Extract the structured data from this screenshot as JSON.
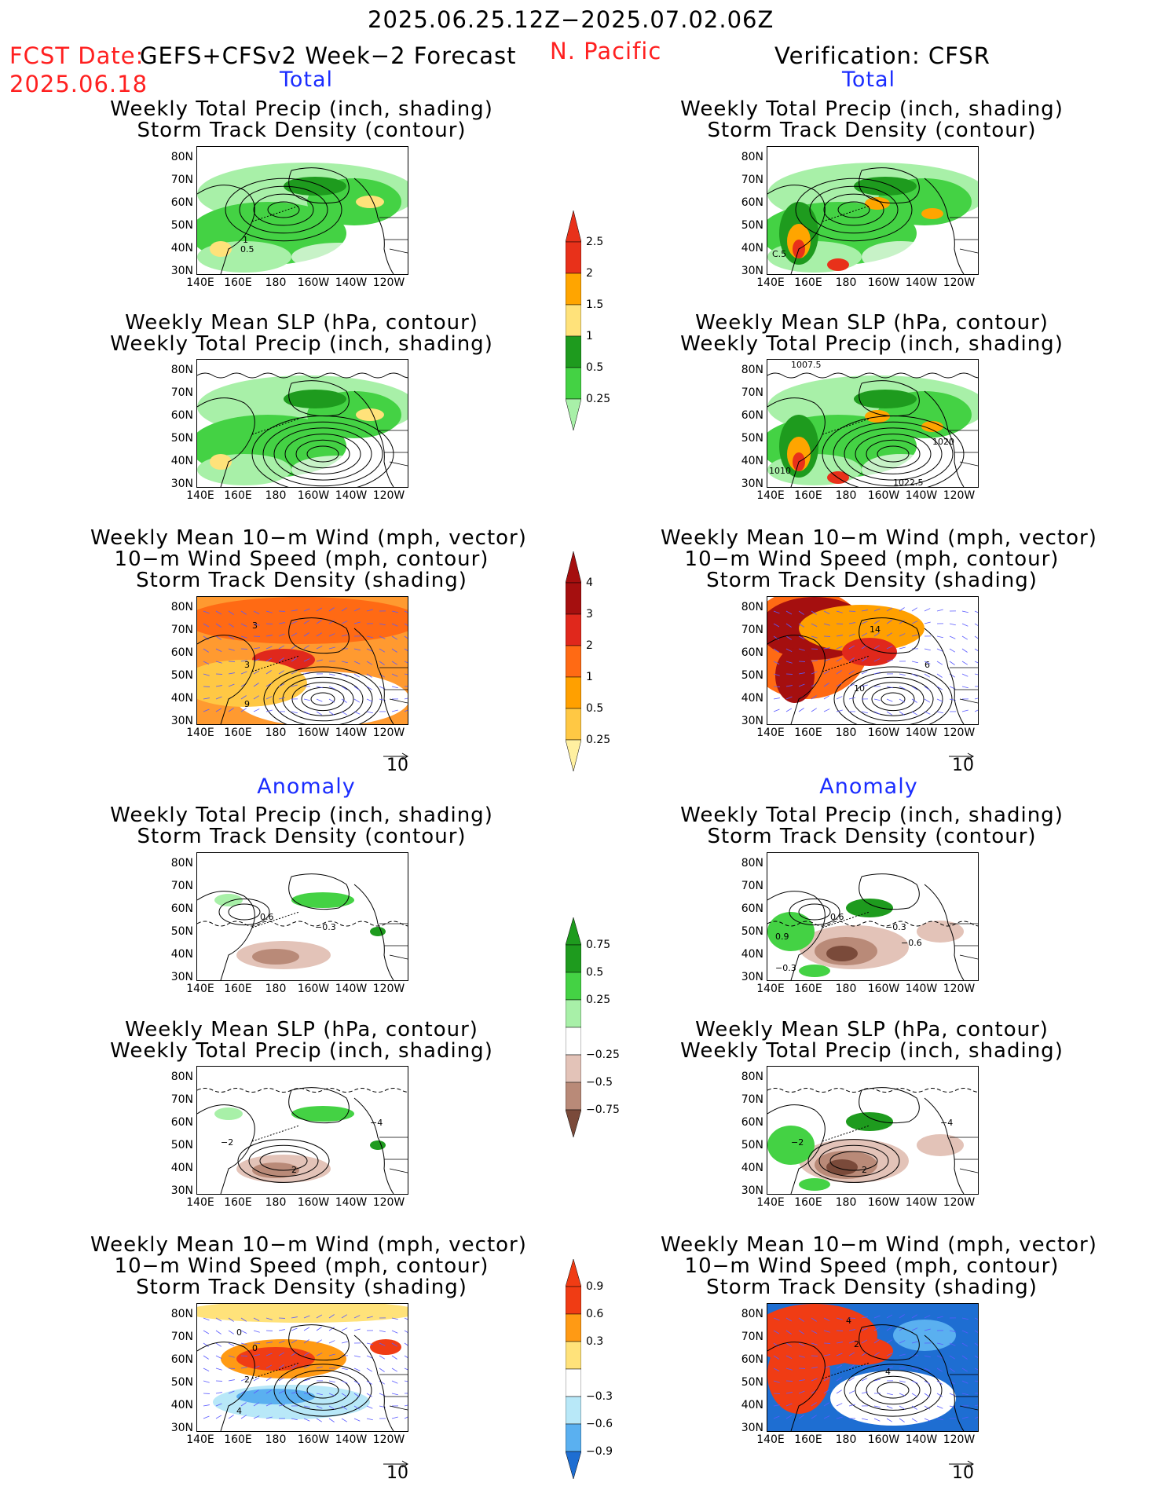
{
  "header": {
    "date_range": "2025.06.25.12Z−2025.07.02.06Z",
    "fcst_label": "FCST Date:",
    "fcst_model": "GEFS+CFSv2 Week−2 Forecast",
    "fcst_date": "2025.06.18",
    "region": "N. Pacific",
    "verification": "Verification: CFSR"
  },
  "sections": {
    "total": "Total",
    "anomaly": "Anomaly"
  },
  "panel_titles": {
    "precip_storm": [
      "Weekly Total Precip (inch, shading)",
      "Storm Track Density (contour)"
    ],
    "slp_precip": [
      "Weekly Mean SLP (hPa, contour)",
      "Weekly Total Precip (inch, shading)"
    ],
    "wind_storm": [
      "Weekly Mean 10−m Wind (mph, vector)",
      "10−m Wind Speed (mph, contour)",
      "Storm Track Density (shading)"
    ]
  },
  "axes": {
    "lat_ticks": [
      "80N",
      "70N",
      "60N",
      "50N",
      "40N",
      "30N"
    ],
    "lon_ticks": [
      "140E",
      "160E",
      "180",
      "160W",
      "140W",
      "120W"
    ]
  },
  "vector_ref": "10",
  "colorbars": {
    "precip_total": {
      "labels": [
        "2.5",
        "2",
        "1.5",
        "1",
        "0.5",
        "0.25"
      ],
      "colors": [
        "#e8311a",
        "#ffa500",
        "#ffe27a",
        "#1e9b1e",
        "#44d244",
        "#a8f0a8"
      ]
    },
    "storm_total": {
      "labels": [
        "4",
        "3",
        "2",
        "1",
        "0.5",
        "0.25"
      ],
      "colors": [
        "#a50f0f",
        "#e0281c",
        "#ff6a14",
        "#ffa000",
        "#ffc844",
        "#fff0a0"
      ]
    },
    "precip_anom": {
      "labels": [
        "0.75",
        "0.5",
        "0.25",
        "−0.25",
        "−0.5",
        "−0.75"
      ],
      "colors": [
        "#1e9b1e",
        "#44d244",
        "#a8f0a8",
        "#ffffff",
        "#e3c3b8",
        "#b98a78",
        "#7a4a3a"
      ]
    },
    "storm_anom": {
      "labels": [
        "0.9",
        "0.6",
        "0.3",
        "−0.3",
        "−0.6",
        "−0.9"
      ],
      "colors": [
        "#f03c14",
        "#ff9a14",
        "#ffe27a",
        "#ffffff",
        "#b8e8f8",
        "#5ab0f0",
        "#1e6ed2"
      ]
    }
  },
  "contour_labels": {
    "l1": "1",
    "l2": "0.5",
    "l3": "C.5",
    "l4": "1007.5",
    "l5": "1020",
    "l6": "1022.5",
    "l7": "1010",
    "l8": "3",
    "l9": "9",
    "l10": "14",
    "l11": "10",
    "l12": "6",
    "l13": "0.6",
    "l14": "−0.3",
    "l15": "0.9",
    "l16": "−0.6",
    "l17": "−2",
    "l18": "2",
    "l19": "−4",
    "l20": "4",
    "l21": "0",
    "l22": "−0.3"
  }
}
